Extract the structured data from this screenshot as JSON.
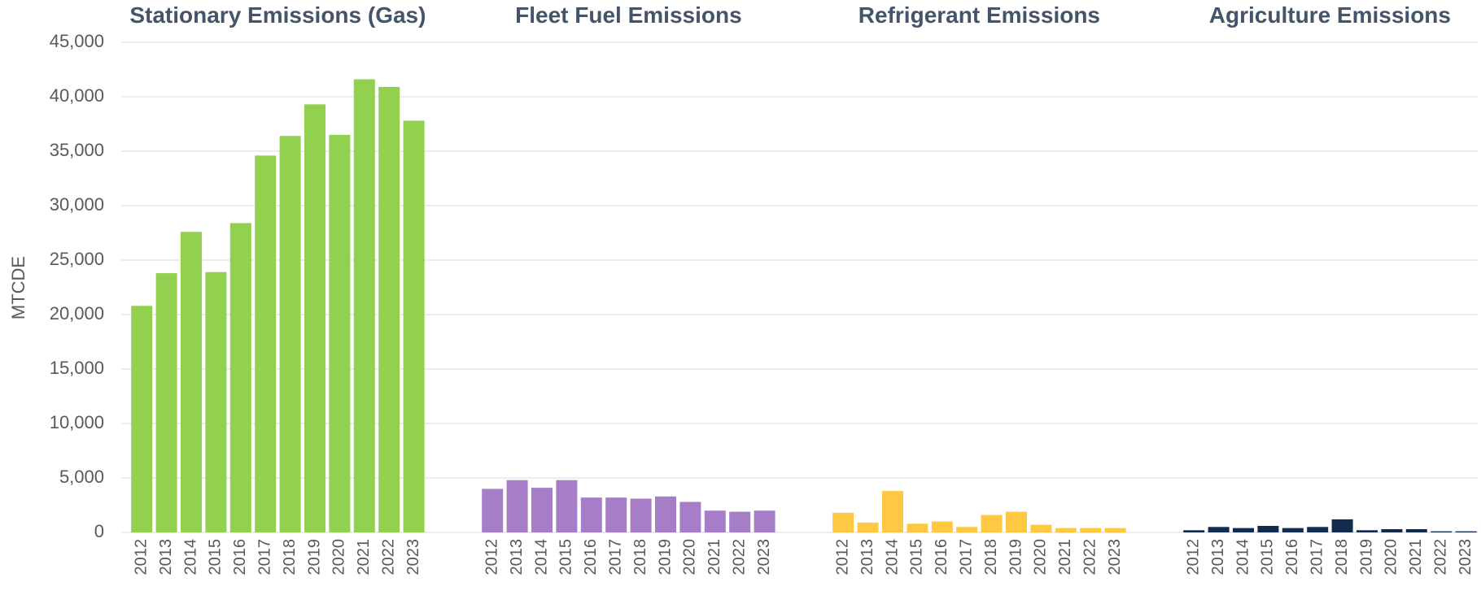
{
  "chart_data": {
    "type": "bar",
    "ylabel": "MTCDE",
    "ylim": [
      0,
      45000
    ],
    "yticks": [
      0,
      {
        "value": 5000,
        "label": "5,000"
      },
      {
        "value": 10000,
        "label": "10,000"
      },
      {
        "value": 15000,
        "label": "15,000"
      },
      {
        "value": 20000,
        "label": "20,000"
      },
      {
        "value": 25000,
        "label": "25,000"
      },
      {
        "value": 30000,
        "label": "30,000"
      },
      {
        "value": 35000,
        "label": "35,000"
      },
      {
        "value": 40000,
        "label": "40,000"
      },
      {
        "value": 45000,
        "label": "45,000"
      }
    ],
    "grid": true,
    "panels": [
      {
        "title": "Stationary Emissions (Gas)",
        "color": "#92d050",
        "categories": [
          "2012",
          "2013",
          "2014",
          "2015",
          "2016",
          "2017",
          "2018",
          "2019",
          "2020",
          "2021",
          "2022",
          "2023"
        ],
        "values": [
          20800,
          23800,
          27600,
          23900,
          28400,
          34600,
          36400,
          39300,
          36500,
          41600,
          40900,
          37800
        ]
      },
      {
        "title": "Fleet Fuel Emissions",
        "color": "#a67ec8",
        "categories": [
          "2012",
          "2013",
          "2014",
          "2015",
          "2016",
          "2017",
          "2018",
          "2019",
          "2020",
          "2021",
          "2022",
          "2023"
        ],
        "values": [
          4000,
          4800,
          4100,
          4800,
          3200,
          3200,
          3100,
          3300,
          2800,
          2000,
          1900,
          2000
        ]
      },
      {
        "title": "Refrigerant Emissions",
        "color": "#ffc843",
        "categories": [
          "2012",
          "2013",
          "2014",
          "2015",
          "2016",
          "2017",
          "2018",
          "2019",
          "2020",
          "2021",
          "2022",
          "2023"
        ],
        "values": [
          1800,
          900,
          3800,
          800,
          1000,
          500,
          1600,
          1900,
          700,
          400,
          400,
          400
        ]
      },
      {
        "title": "Agriculture Emissions",
        "color": "#112c4f",
        "categories": [
          "2012",
          "2013",
          "2014",
          "2015",
          "2016",
          "2017",
          "2018",
          "2019",
          "2020",
          "2021",
          "2022",
          "2023"
        ],
        "values": [
          200,
          500,
          400,
          600,
          400,
          500,
          1200,
          200,
          300,
          300,
          100,
          100
        ]
      }
    ]
  }
}
